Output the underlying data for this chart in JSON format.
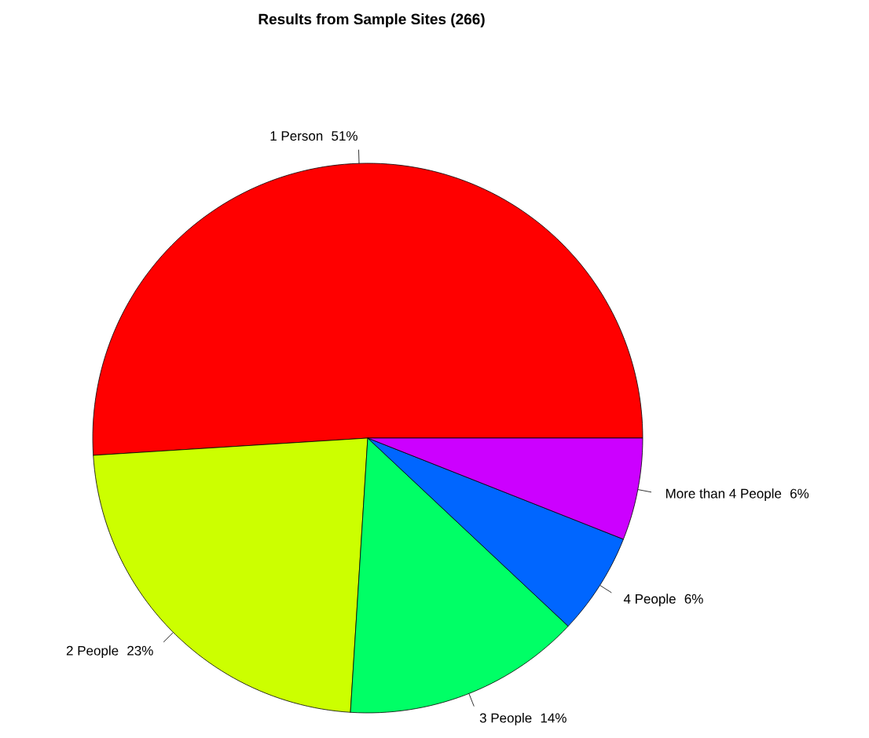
{
  "chart_data": {
    "type": "pie",
    "title": "Results from Sample Sites (266)",
    "categories": [
      "1 Person",
      "2 People",
      "3 People",
      "4 People",
      "More than 4 People"
    ],
    "values": [
      51,
      23,
      14,
      6,
      6
    ],
    "value_labels": [
      "51%",
      "23%",
      "14%",
      "6%",
      "6%"
    ],
    "colors": [
      "#ff0000",
      "#ccff00",
      "#00ff66",
      "#0066ff",
      "#cc00ff"
    ]
  }
}
